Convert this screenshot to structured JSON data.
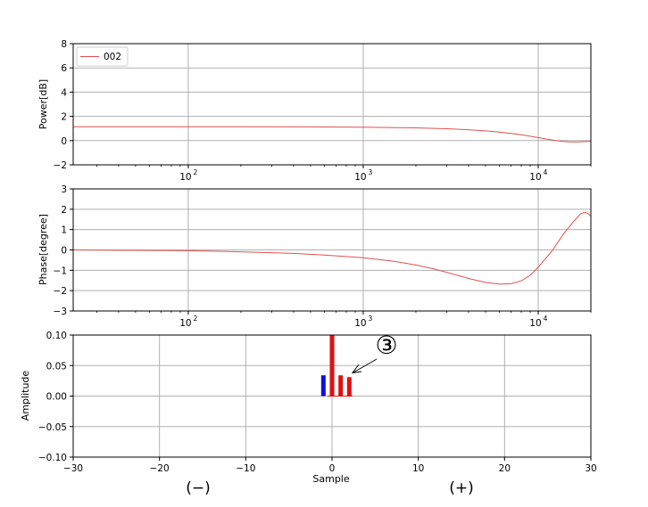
{
  "chart_data": [
    {
      "type": "line",
      "xscale": "log",
      "xlim": [
        22,
        20000
      ],
      "ylim": [
        -2,
        8
      ],
      "ylabel": "Power[dB]",
      "xlabel": "",
      "yticks": [
        -2,
        0,
        2,
        4,
        6,
        8
      ],
      "xticks": [
        100,
        1000,
        10000
      ],
      "xtick_labels": [
        {
          "base": "10",
          "exp": "2"
        },
        {
          "base": "10",
          "exp": "3"
        },
        {
          "base": "10",
          "exp": "4"
        }
      ],
      "grid": true,
      "legend": {
        "position": "top-left",
        "entries": [
          "002"
        ]
      },
      "series": [
        {
          "name": "002",
          "color": "#e05050",
          "points": [
            [
              22,
              1.15
            ],
            [
              50,
              1.15
            ],
            [
              100,
              1.15
            ],
            [
              200,
              1.14
            ],
            [
              500,
              1.13
            ],
            [
              1000,
              1.11
            ],
            [
              2000,
              1.05
            ],
            [
              3000,
              0.98
            ],
            [
              4000,
              0.9
            ],
            [
              5000,
              0.8
            ],
            [
              6000,
              0.7
            ],
            [
              7000,
              0.59
            ],
            [
              8000,
              0.48
            ],
            [
              9000,
              0.36
            ],
            [
              10000,
              0.25
            ],
            [
              11000,
              0.14
            ],
            [
              12000,
              0.05
            ],
            [
              13000,
              -0.02
            ],
            [
              14000,
              -0.07
            ],
            [
              15000,
              -0.1
            ],
            [
              16000,
              -0.11
            ],
            [
              17000,
              -0.1
            ],
            [
              18000,
              -0.09
            ],
            [
              19000,
              -0.07
            ],
            [
              20000,
              -0.05
            ]
          ]
        }
      ]
    },
    {
      "type": "line",
      "xscale": "log",
      "xlim": [
        22,
        20000
      ],
      "ylim": [
        -3,
        3
      ],
      "ylabel": "Phase[degree]",
      "xlabel": "",
      "yticks": [
        -3,
        -2,
        -1,
        0,
        1,
        2,
        3
      ],
      "xticks": [
        100,
        1000,
        10000
      ],
      "xtick_labels": [
        {
          "base": "10",
          "exp": "2"
        },
        {
          "base": "10",
          "exp": "3"
        },
        {
          "base": "10",
          "exp": "4"
        }
      ],
      "grid": true,
      "series": [
        {
          "name": "",
          "color": "#e05050",
          "points": [
            [
              22,
              0.0
            ],
            [
              50,
              -0.02
            ],
            [
              100,
              -0.04
            ],
            [
              200,
              -0.09
            ],
            [
              400,
              -0.17
            ],
            [
              600,
              -0.25
            ],
            [
              1000,
              -0.38
            ],
            [
              1500,
              -0.56
            ],
            [
              2000,
              -0.74
            ],
            [
              2500,
              -0.92
            ],
            [
              3000,
              -1.1
            ],
            [
              4000,
              -1.4
            ],
            [
              5000,
              -1.6
            ],
            [
              6000,
              -1.68
            ],
            [
              7000,
              -1.66
            ],
            [
              8000,
              -1.52
            ],
            [
              9000,
              -1.25
            ],
            [
              10000,
              -0.85
            ],
            [
              12000,
              -0.05
            ],
            [
              14000,
              0.8
            ],
            [
              16000,
              1.42
            ],
            [
              17500,
              1.78
            ],
            [
              18500,
              1.85
            ],
            [
              19200,
              1.8
            ],
            [
              20000,
              1.65
            ]
          ]
        }
      ]
    },
    {
      "type": "bar",
      "xlim": [
        -30,
        30
      ],
      "ylim": [
        -0.1,
        0.1
      ],
      "xlabel": "Sample",
      "ylabel": "Amplitude",
      "xticks": [
        -30,
        -20,
        -10,
        0,
        10,
        20,
        30
      ],
      "xtick_labels": [
        "−30",
        "−20",
        "−10",
        "0",
        "10",
        "20",
        "30"
      ],
      "yticks": [
        -0.1,
        -0.05,
        0.0,
        0.05,
        0.1
      ],
      "ytick_labels": [
        "−0.10",
        "−0.05",
        "0.00",
        "0.05",
        "0.10"
      ],
      "grid": true,
      "bars": [
        {
          "x": -1,
          "value": 0.034,
          "color": "#1010d0"
        },
        {
          "x": 0,
          "value": 0.1,
          "color": "#e01010"
        },
        {
          "x": 1,
          "value": 0.034,
          "color": "#e01010"
        },
        {
          "x": 2,
          "value": 0.031,
          "color": "#e01010"
        }
      ],
      "annotations": [
        {
          "text": "③",
          "kind": "arrow-label",
          "points_to_x": 2.5,
          "points_to_y": 0.034
        }
      ],
      "footer_labels": {
        "left": "(−)",
        "right": "(+)"
      }
    }
  ]
}
